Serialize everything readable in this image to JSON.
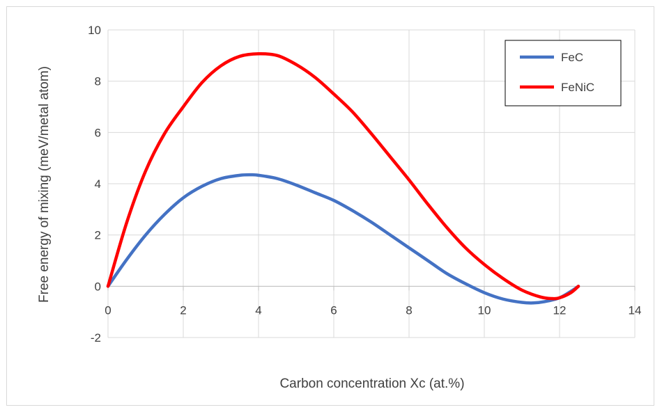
{
  "chart_data": {
    "type": "line",
    "title": "",
    "xlabel": "Carbon concentration Xc (at.%)",
    "ylabel": "Free  energy of mixing (meV/metal atom)",
    "xlim": [
      0,
      14
    ],
    "ylim": [
      -2,
      10
    ],
    "xticks": [
      "0",
      "2",
      "4",
      "6",
      "8",
      "10",
      "12",
      "14"
    ],
    "yticks": [
      "-2",
      "0",
      "2",
      "4",
      "6",
      "8",
      "10"
    ],
    "grid": true,
    "legend_position": "top-right",
    "series": [
      {
        "name": "FeC",
        "color": "#4472c4",
        "x": [
          0,
          0.5,
          1,
          1.5,
          2,
          2.5,
          3,
          3.5,
          3.8,
          4,
          4.5,
          5,
          5.5,
          6,
          6.5,
          7,
          7.5,
          8,
          8.5,
          9,
          9.5,
          10,
          10.5,
          11,
          11.3,
          11.6,
          12,
          12.3,
          12.5
        ],
        "y": [
          0,
          1.05,
          2.0,
          2.8,
          3.45,
          3.9,
          4.2,
          4.33,
          4.35,
          4.33,
          4.2,
          3.95,
          3.65,
          3.35,
          2.95,
          2.5,
          2.0,
          1.5,
          1.0,
          0.5,
          0.1,
          -0.25,
          -0.5,
          -0.63,
          -0.65,
          -0.6,
          -0.45,
          -0.2,
          0
        ]
      },
      {
        "name": "FeNiC",
        "color": "#ff0000",
        "x": [
          0,
          0.5,
          1,
          1.5,
          2,
          2.5,
          3,
          3.5,
          4,
          4.5,
          5,
          5.5,
          6,
          6.5,
          7,
          7.5,
          8,
          8.5,
          9,
          9.5,
          10,
          10.5,
          11,
          11.5,
          11.8,
          12,
          12.3,
          12.5
        ],
        "y": [
          0,
          2.5,
          4.5,
          5.95,
          7.0,
          7.95,
          8.6,
          8.97,
          9.07,
          9.0,
          8.65,
          8.15,
          7.5,
          6.8,
          5.95,
          5.05,
          4.15,
          3.2,
          2.3,
          1.5,
          0.85,
          0.3,
          -0.15,
          -0.42,
          -0.48,
          -0.45,
          -0.25,
          0
        ]
      }
    ]
  }
}
